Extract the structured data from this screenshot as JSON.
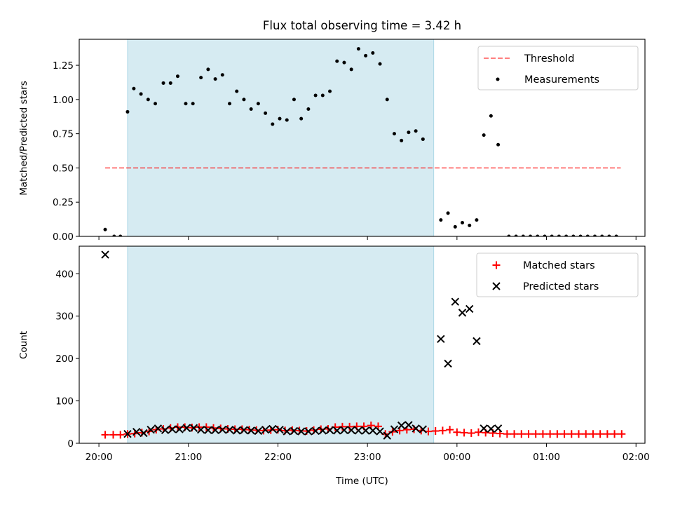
{
  "title": "Flux total observing time = 3.42 h",
  "colors": {
    "shade": "#add8e6",
    "threshold": "#ff0000",
    "measurement": "#000000",
    "matched": "#ff0000",
    "predicted": "#000000"
  },
  "x_axis": {
    "label": "Time (UTC)",
    "unit": "hours since 20:00",
    "range": [
      -0.22,
      6.1
    ],
    "ticks": [
      {
        "v": 0,
        "label": "20:00"
      },
      {
        "v": 1,
        "label": "21:00"
      },
      {
        "v": 2,
        "label": "22:00"
      },
      {
        "v": 3,
        "label": "23:00"
      },
      {
        "v": 4,
        "label": "00:00"
      },
      {
        "v": 5,
        "label": "01:00"
      },
      {
        "v": 6,
        "label": "02:00"
      }
    ]
  },
  "chart_data": [
    {
      "type": "scatter",
      "ylabel": "Matched/Predicted stars",
      "ylim": [
        0,
        1.44
      ],
      "yticks": [
        0.0,
        0.25,
        0.5,
        0.75,
        1.0,
        1.25
      ],
      "ytick_labels": [
        "0.00",
        "0.25",
        "0.50",
        "0.75",
        "1.00",
        "1.25"
      ],
      "shaded_interval": [
        0.32,
        3.74
      ],
      "legend_position": "top-right",
      "threshold": {
        "name": "Threshold",
        "y": 0.5,
        "x_range": [
          0.07,
          5.83
        ]
      },
      "series": [
        {
          "name": "Measurements",
          "points": [
            [
              0.07,
              0.05
            ],
            [
              0.17,
              0.0
            ],
            [
              0.24,
              0.0
            ],
            [
              0.32,
              0.91
            ],
            [
              0.39,
              1.08
            ],
            [
              0.47,
              1.04
            ],
            [
              0.55,
              1.0
            ],
            [
              0.63,
              0.97
            ],
            [
              0.72,
              1.12
            ],
            [
              0.8,
              1.12
            ],
            [
              0.88,
              1.17
            ],
            [
              0.97,
              0.97
            ],
            [
              1.05,
              0.97
            ],
            [
              1.14,
              1.16
            ],
            [
              1.22,
              1.22
            ],
            [
              1.3,
              1.15
            ],
            [
              1.38,
              1.18
            ],
            [
              1.46,
              0.97
            ],
            [
              1.54,
              1.06
            ],
            [
              1.62,
              1.0
            ],
            [
              1.7,
              0.93
            ],
            [
              1.78,
              0.97
            ],
            [
              1.86,
              0.9
            ],
            [
              1.94,
              0.82
            ],
            [
              2.02,
              0.86
            ],
            [
              2.1,
              0.85
            ],
            [
              2.18,
              1.0
            ],
            [
              2.26,
              0.86
            ],
            [
              2.34,
              0.93
            ],
            [
              2.42,
              1.03
            ],
            [
              2.5,
              1.03
            ],
            [
              2.58,
              1.06
            ],
            [
              2.66,
              1.28
            ],
            [
              2.74,
              1.27
            ],
            [
              2.82,
              1.22
            ],
            [
              2.9,
              1.37
            ],
            [
              2.98,
              1.32
            ],
            [
              3.06,
              1.34
            ],
            [
              3.14,
              1.26
            ],
            [
              3.22,
              1.0
            ],
            [
              3.3,
              0.75
            ],
            [
              3.38,
              0.7
            ],
            [
              3.46,
              0.76
            ],
            [
              3.54,
              0.77
            ],
            [
              3.62,
              0.71
            ],
            [
              3.82,
              0.12
            ],
            [
              3.9,
              0.17
            ],
            [
              3.98,
              0.07
            ],
            [
              4.06,
              0.1
            ],
            [
              4.14,
              0.08
            ],
            [
              4.22,
              0.12
            ],
            [
              4.3,
              0.74
            ],
            [
              4.38,
              0.88
            ],
            [
              4.46,
              0.67
            ],
            [
              4.58,
              0.0
            ],
            [
              4.66,
              0.0
            ],
            [
              4.74,
              0.0
            ],
            [
              4.82,
              0.0
            ],
            [
              4.9,
              0.0
            ],
            [
              4.98,
              0.0
            ],
            [
              5.06,
              0.0
            ],
            [
              5.14,
              0.0
            ],
            [
              5.22,
              0.0
            ],
            [
              5.3,
              0.0
            ],
            [
              5.38,
              0.0
            ],
            [
              5.46,
              0.0
            ],
            [
              5.54,
              0.0
            ],
            [
              5.62,
              0.0
            ],
            [
              5.7,
              0.0
            ],
            [
              5.78,
              0.0
            ]
          ]
        }
      ]
    },
    {
      "type": "scatter",
      "ylabel": "Count",
      "ylim": [
        0,
        465
      ],
      "yticks": [
        0,
        100,
        200,
        300,
        400
      ],
      "ytick_labels": [
        "0",
        "100",
        "200",
        "300",
        "400"
      ],
      "shaded_interval": [
        0.32,
        3.74
      ],
      "legend_position": "top-right",
      "series": [
        {
          "name": "Matched stars",
          "marker": "plus",
          "points": [
            [
              0.07,
              20
            ],
            [
              0.16,
              20
            ],
            [
              0.24,
              20
            ],
            [
              0.32,
              22
            ],
            [
              0.4,
              23
            ],
            [
              0.48,
              25
            ],
            [
              0.56,
              28
            ],
            [
              0.64,
              32
            ],
            [
              0.72,
              34
            ],
            [
              0.8,
              36
            ],
            [
              0.88,
              38
            ],
            [
              0.96,
              38
            ],
            [
              1.04,
              37
            ],
            [
              1.12,
              38
            ],
            [
              1.2,
              38
            ],
            [
              1.28,
              36
            ],
            [
              1.36,
              35
            ],
            [
              1.44,
              34
            ],
            [
              1.52,
              33
            ],
            [
              1.6,
              33
            ],
            [
              1.68,
              32
            ],
            [
              1.76,
              31
            ],
            [
              1.84,
              30
            ],
            [
              1.92,
              31
            ],
            [
              2.0,
              32
            ],
            [
              2.08,
              30
            ],
            [
              2.16,
              31
            ],
            [
              2.24,
              30
            ],
            [
              2.32,
              29
            ],
            [
              2.4,
              31
            ],
            [
              2.48,
              33
            ],
            [
              2.56,
              34
            ],
            [
              2.64,
              38
            ],
            [
              2.72,
              39
            ],
            [
              2.8,
              39
            ],
            [
              2.88,
              40
            ],
            [
              2.96,
              40
            ],
            [
              3.04,
              42
            ],
            [
              3.12,
              40
            ],
            [
              3.2,
              22
            ],
            [
              3.28,
              27
            ],
            [
              3.36,
              30
            ],
            [
              3.44,
              32
            ],
            [
              3.52,
              33
            ],
            [
              3.6,
              30
            ],
            [
              3.68,
              28
            ],
            [
              3.76,
              29
            ],
            [
              3.84,
              30
            ],
            [
              3.92,
              32
            ],
            [
              4.0,
              26
            ],
            [
              4.08,
              25
            ],
            [
              4.16,
              24
            ],
            [
              4.24,
              26
            ],
            [
              4.32,
              25
            ],
            [
              4.4,
              24
            ],
            [
              4.48,
              23
            ],
            [
              4.56,
              22
            ],
            [
              4.64,
              22
            ],
            [
              4.72,
              22
            ],
            [
              4.8,
              22
            ],
            [
              4.88,
              22
            ],
            [
              4.96,
              22
            ],
            [
              5.04,
              22
            ],
            [
              5.12,
              22
            ],
            [
              5.2,
              22
            ],
            [
              5.28,
              22
            ],
            [
              5.36,
              22
            ],
            [
              5.44,
              22
            ],
            [
              5.52,
              22
            ],
            [
              5.6,
              22
            ],
            [
              5.68,
              22
            ],
            [
              5.76,
              22
            ],
            [
              5.84,
              22
            ]
          ]
        },
        {
          "name": "Predicted stars",
          "marker": "x",
          "points": [
            [
              0.07,
              445
            ],
            [
              0.32,
              22
            ],
            [
              0.42,
              27
            ],
            [
              0.5,
              24
            ],
            [
              0.58,
              32
            ],
            [
              0.66,
              35
            ],
            [
              0.74,
              31
            ],
            [
              0.82,
              33
            ],
            [
              0.9,
              33
            ],
            [
              0.98,
              36
            ],
            [
              1.06,
              36
            ],
            [
              1.14,
              32
            ],
            [
              1.22,
              31
            ],
            [
              1.3,
              31
            ],
            [
              1.38,
              32
            ],
            [
              1.46,
              32
            ],
            [
              1.54,
              30
            ],
            [
              1.62,
              31
            ],
            [
              1.7,
              30
            ],
            [
              1.78,
              29
            ],
            [
              1.86,
              32
            ],
            [
              1.94,
              34
            ],
            [
              2.02,
              32
            ],
            [
              2.1,
              28
            ],
            [
              2.18,
              29
            ],
            [
              2.26,
              28
            ],
            [
              2.34,
              28
            ],
            [
              2.42,
              29
            ],
            [
              2.5,
              30
            ],
            [
              2.58,
              31
            ],
            [
              2.66,
              30
            ],
            [
              2.74,
              31
            ],
            [
              2.82,
              31
            ],
            [
              2.9,
              30
            ],
            [
              2.98,
              30
            ],
            [
              3.06,
              30
            ],
            [
              3.14,
              28
            ],
            [
              3.22,
              18
            ],
            [
              3.3,
              33
            ],
            [
              3.38,
              42
            ],
            [
              3.46,
              43
            ],
            [
              3.54,
              35
            ],
            [
              3.62,
              33
            ],
            [
              3.82,
              246
            ],
            [
              3.9,
              188
            ],
            [
              3.98,
              334
            ],
            [
              4.06,
              308
            ],
            [
              4.14,
              317
            ],
            [
              4.22,
              241
            ],
            [
              4.3,
              35
            ],
            [
              4.38,
              34
            ],
            [
              4.46,
              35
            ]
          ]
        }
      ]
    }
  ]
}
